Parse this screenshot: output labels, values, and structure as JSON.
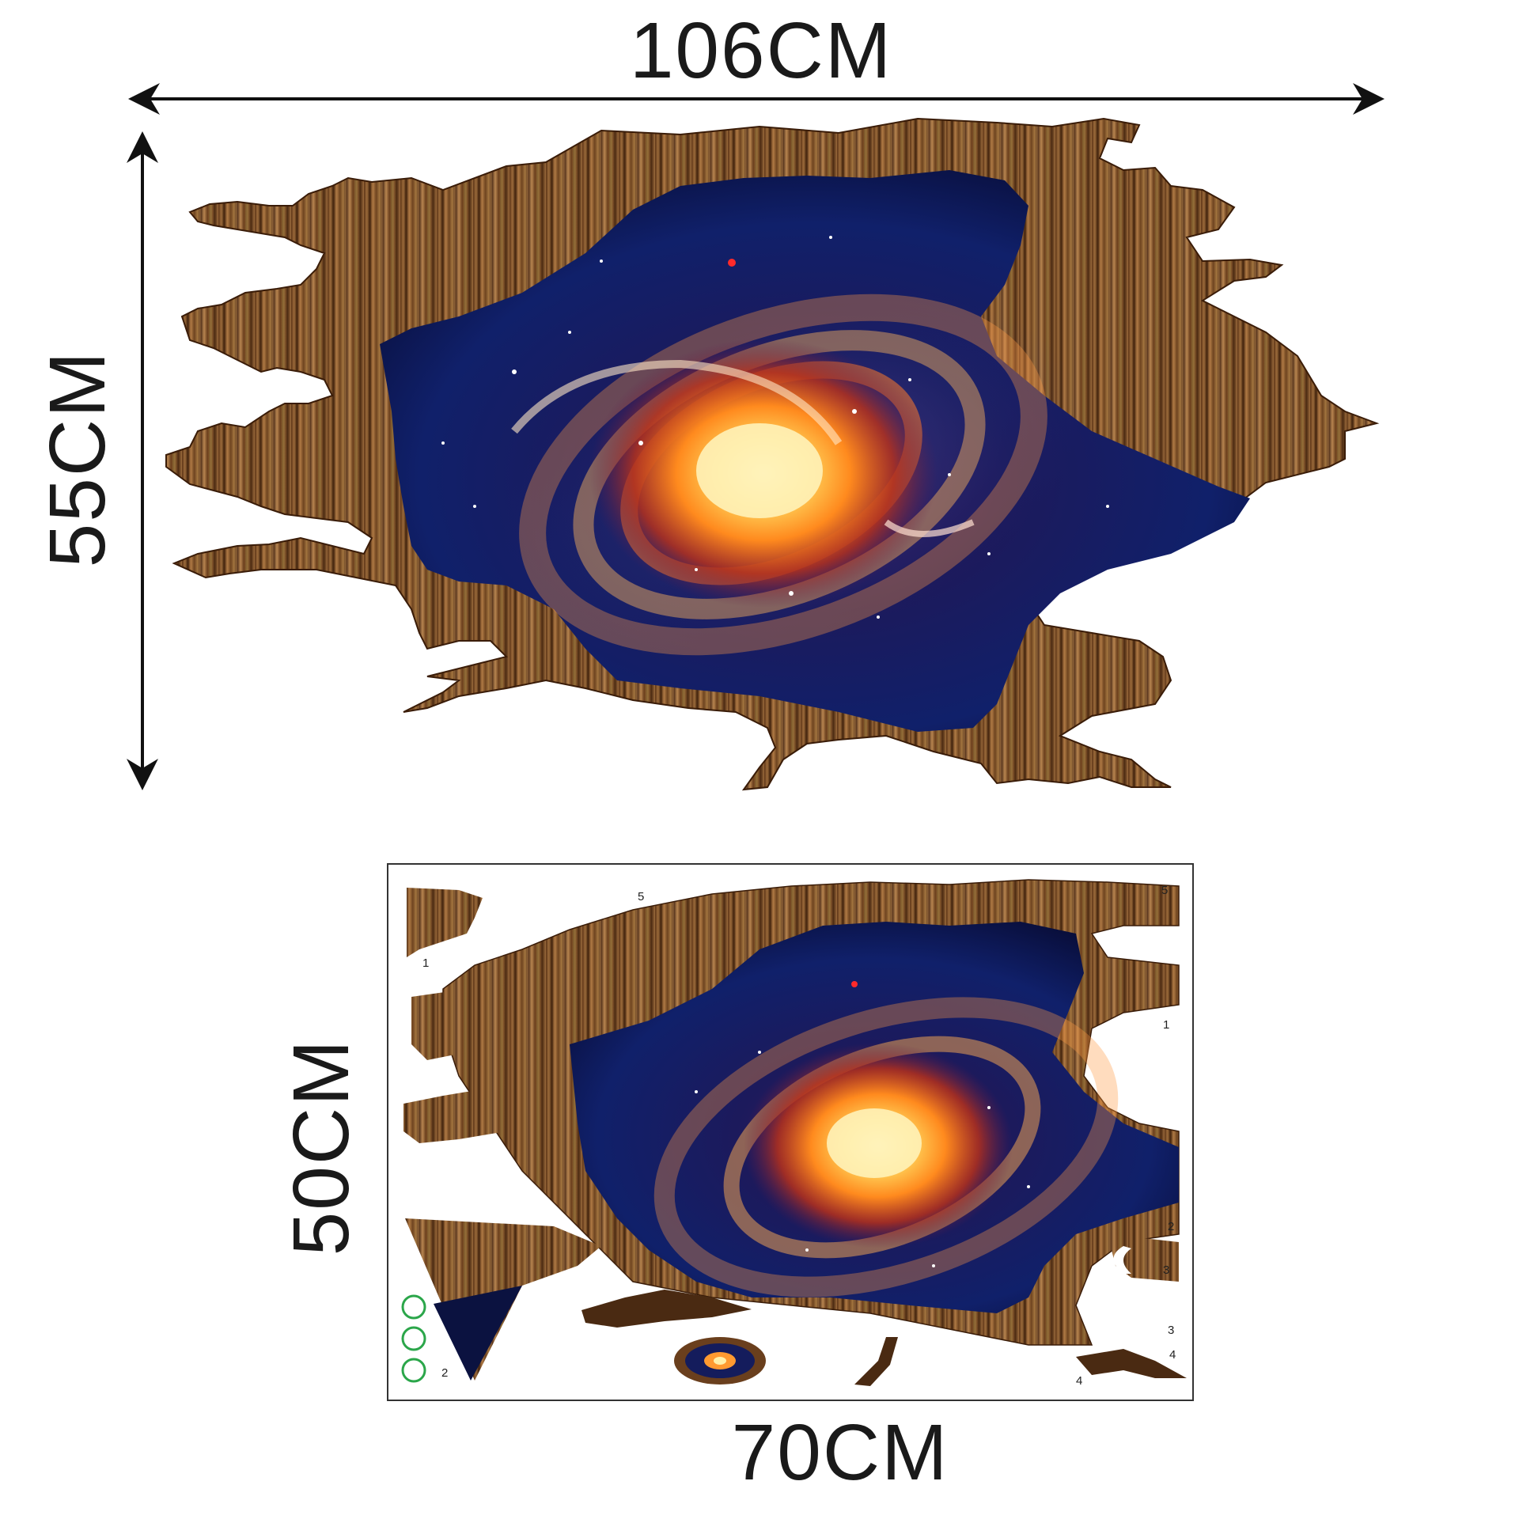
{
  "top_view": {
    "width_label": "106CM",
    "height_label": "55CM"
  },
  "sheet_view": {
    "width_label": "70CM",
    "height_label": "50CM",
    "part_numbers": [
      "1",
      "1",
      "2",
      "2",
      "3",
      "3",
      "4",
      "4",
      "5",
      "5"
    ]
  },
  "colors": {
    "wood": "#7a4a24",
    "space_deep": "#0d1140",
    "galaxy_core": "#ffb52e"
  }
}
